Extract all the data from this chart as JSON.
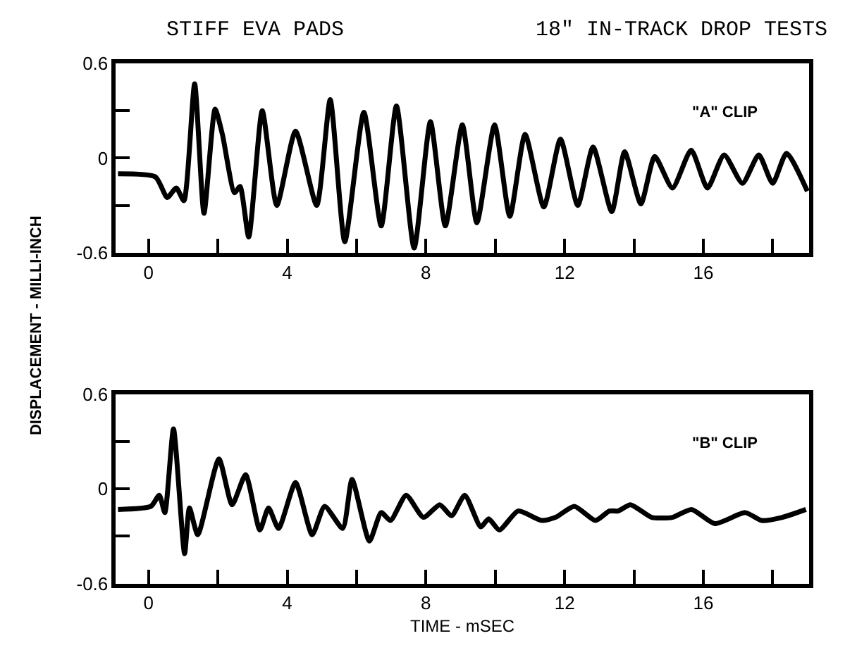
{
  "chart_data": [
    {
      "type": "line",
      "title": "STIFF EVA PADS",
      "subtitle": "18\" IN-TRACK DROP TESTS",
      "ylabel": "DISPLACEMENT - MILLI-INCH",
      "annotations": [
        "\"A\" CLIP"
      ],
      "marker": "none",
      "line_style": "solid",
      "xlim": [
        -0.95,
        19.05
      ],
      "ylim": [
        -0.6,
        0.6
      ],
      "xticks": [
        0,
        {
          "value": 2,
          "label": null
        },
        4,
        {
          "value": 6,
          "label": null
        },
        8,
        {
          "value": 10,
          "label": null
        },
        12,
        {
          "value": 14,
          "label": null
        },
        16,
        {
          "value": 18,
          "label": null
        }
      ],
      "yticks": [
        {
          "value": -0.6,
          "label": "-0.6"
        },
        {
          "value": -0.3,
          "label": null
        },
        0,
        {
          "value": 0.3,
          "label": null
        },
        0.6
      ],
      "series": [
        {
          "color": "#000000",
          "x": [
            -0.88,
            0.2,
            0.54,
            0.8,
            1.02,
            1.33,
            1.6,
            1.92,
            2.13,
            2.48,
            2.64,
            2.89,
            3.28,
            3.7,
            4.24,
            4.85,
            5.24,
            5.66,
            6.21,
            6.71,
            7.15,
            7.66,
            8.13,
            8.56,
            9.05,
            9.47,
            9.98,
            10.42,
            10.86,
            11.4,
            11.88,
            12.38,
            12.82,
            13.36,
            13.73,
            14.2,
            14.6,
            15.11,
            15.65,
            16.12,
            16.6,
            17.13,
            17.6,
            18.0,
            18.4,
            19.0
          ],
          "values": [
            -0.1,
            -0.12,
            -0.25,
            -0.19,
            -0.27,
            0.47,
            -0.35,
            0.31,
            0.15,
            -0.22,
            -0.18,
            -0.5,
            0.3,
            -0.3,
            0.17,
            -0.3,
            0.37,
            -0.53,
            0.29,
            -0.43,
            0.33,
            -0.57,
            0.23,
            -0.43,
            0.21,
            -0.41,
            0.21,
            -0.37,
            0.15,
            -0.31,
            0.12,
            -0.3,
            0.07,
            -0.34,
            0.04,
            -0.29,
            0.01,
            -0.19,
            0.05,
            -0.19,
            0.02,
            -0.16,
            0.02,
            -0.16,
            0.03,
            -0.21
          ]
        }
      ]
    },
    {
      "type": "line",
      "xlabel": "TIME - mSEC",
      "annotations": [
        "\"B\" CLIP"
      ],
      "marker": "none",
      "line_style": "solid",
      "xlim": [
        -0.95,
        19.05
      ],
      "ylim": [
        -0.6,
        0.6
      ],
      "xticks": [
        0,
        {
          "value": 2,
          "label": null
        },
        4,
        {
          "value": 6,
          "label": null
        },
        8,
        {
          "value": 10,
          "label": null
        },
        12,
        {
          "value": 14,
          "label": null
        },
        16,
        {
          "value": 18,
          "label": null
        }
      ],
      "yticks": [
        {
          "value": -0.6,
          "label": "-0.6"
        },
        {
          "value": -0.3,
          "label": null
        },
        0,
        {
          "value": 0.3,
          "label": null
        },
        0.6
      ],
      "series": [
        {
          "color": "#000000",
          "x": [
            -0.88,
            0.07,
            0.31,
            0.47,
            0.72,
            1.04,
            1.18,
            1.42,
            2.03,
            2.41,
            2.8,
            3.21,
            3.46,
            3.75,
            4.24,
            4.72,
            5.08,
            5.6,
            5.87,
            6.37,
            6.71,
            6.98,
            7.43,
            7.93,
            8.4,
            8.74,
            9.12,
            9.58,
            9.81,
            10.12,
            10.66,
            11.34,
            11.74,
            12.28,
            12.89,
            13.29,
            13.54,
            13.9,
            14.51,
            15.11,
            15.66,
            16.33,
            17.21,
            17.68,
            18.28,
            18.96
          ],
          "values": [
            -0.13,
            -0.11,
            -0.04,
            -0.15,
            0.38,
            -0.41,
            -0.12,
            -0.29,
            0.19,
            -0.1,
            0.09,
            -0.26,
            -0.12,
            -0.25,
            0.04,
            -0.29,
            -0.11,
            -0.25,
            0.06,
            -0.33,
            -0.15,
            -0.2,
            -0.04,
            -0.18,
            -0.1,
            -0.17,
            -0.04,
            -0.24,
            -0.19,
            -0.26,
            -0.14,
            -0.2,
            -0.18,
            -0.11,
            -0.2,
            -0.14,
            -0.14,
            -0.1,
            -0.18,
            -0.18,
            -0.13,
            -0.22,
            -0.15,
            -0.2,
            -0.18,
            -0.13
          ]
        }
      ]
    }
  ]
}
